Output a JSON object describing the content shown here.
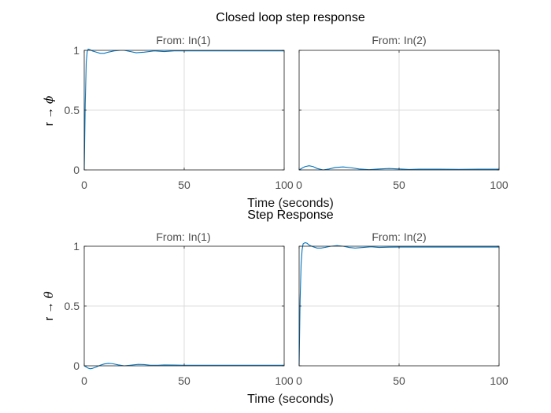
{
  "chart_data": {
    "type": "line",
    "figure": {
      "titles": [
        "Closed loop step response",
        "Step Response"
      ],
      "xlabel": "Time (seconds)",
      "line_color": "#0072bd",
      "axes_color": "#262626",
      "grid_color": "#dcdcdc",
      "grid": true
    },
    "rows": [
      {
        "title": "Closed loop step response",
        "ylabel_prefix": "r → ",
        "ylabel_symbol": "ϕ",
        "ylim": [
          0,
          1
        ],
        "yticks": [
          0,
          0.5,
          1
        ],
        "ytick_labels": [
          "0",
          "0.5",
          "1"
        ],
        "panels": [
          {
            "subtitle": "From: In(1)",
            "xlim": [
              0,
              100
            ],
            "xticks": [
              0,
              50,
              100
            ],
            "xtick_labels": [
              "0",
              "50",
              "100"
            ],
            "x": [
              0,
              0.5,
              1,
              1.5,
              2,
              3,
              4,
              6,
              8,
              10,
              12,
              15,
              18,
              20,
              23,
              26,
              30,
              35,
              40,
              45,
              50,
              60,
              70,
              80,
              90,
              100
            ],
            "y": [
              0,
              0.55,
              0.9,
              0.99,
              1.01,
              1.005,
              0.995,
              0.985,
              0.975,
              0.975,
              0.985,
              0.995,
              1.0,
              1.0,
              0.99,
              0.98,
              0.985,
              0.995,
              0.99,
              0.995,
              0.995,
              0.995,
              0.995,
              0.995,
              0.995,
              0.995
            ]
          },
          {
            "subtitle": "From: In(2)",
            "xlim": [
              0,
              100
            ],
            "xticks": [
              0,
              50,
              100
            ],
            "xtick_labels": [
              "0",
              "50",
              "100"
            ],
            "x": [
              0,
              1,
              2,
              3,
              5,
              7,
              9,
              12,
              15,
              18,
              22,
              26,
              30,
              35,
              40,
              45,
              50,
              55,
              60,
              70,
              80,
              90,
              100
            ],
            "y": [
              0,
              0.01,
              0.02,
              0.028,
              0.035,
              0.028,
              0.012,
              0.0,
              0.008,
              0.02,
              0.025,
              0.018,
              0.008,
              0.002,
              0.008,
              0.012,
              0.008,
              0.004,
              0.006,
              0.006,
              0.005,
              0.006,
              0.006
            ]
          }
        ]
      },
      {
        "title": "Step Response",
        "ylabel_prefix": "r → ",
        "ylabel_symbol": "θ",
        "ylim": [
          0,
          1
        ],
        "yticks": [
          0,
          0.5,
          1
        ],
        "ytick_labels": [
          "0",
          "0.5",
          "1"
        ],
        "panels": [
          {
            "subtitle": "From: In(1)",
            "xlim": [
              0,
              100
            ],
            "xticks": [
              0,
              50,
              100
            ],
            "xtick_labels": [
              "0",
              "50",
              "100"
            ],
            "x": [
              0,
              1,
              2,
              3,
              4,
              6,
              8,
              10,
              12,
              14,
              17,
              20,
              23,
              27,
              30,
              33,
              37,
              40,
              45,
              50,
              60,
              70,
              80,
              90,
              100
            ],
            "y": [
              0,
              -0.01,
              -0.02,
              -0.025,
              -0.022,
              -0.01,
              0.005,
              0.015,
              0.02,
              0.018,
              0.008,
              0.0,
              0.005,
              0.012,
              0.01,
              0.005,
              0.005,
              0.007,
              0.006,
              0.005,
              0.005,
              0.005,
              0.005,
              0.005,
              0.005
            ]
          },
          {
            "subtitle": "From: In(2)",
            "xlim": [
              0,
              100
            ],
            "xticks": [
              0,
              50,
              100
            ],
            "xtick_labels": [
              "0",
              "50",
              "100"
            ],
            "x": [
              0,
              0.5,
              1,
              1.5,
              2,
              3,
              4,
              5,
              7,
              9,
              11,
              13,
              16,
              19,
              22,
              25,
              28,
              32,
              36,
              40,
              45,
              50,
              60,
              70,
              80,
              90,
              100
            ],
            "y": [
              0,
              0.55,
              0.85,
              0.97,
              1.02,
              1.03,
              1.025,
              1.01,
              0.995,
              0.985,
              0.985,
              0.99,
              1.0,
              1.005,
              1.0,
              0.99,
              0.985,
              0.99,
              0.995,
              0.99,
              0.992,
              0.993,
              0.993,
              0.993,
              0.993,
              0.993,
              0.993
            ]
          }
        ]
      }
    ]
  }
}
